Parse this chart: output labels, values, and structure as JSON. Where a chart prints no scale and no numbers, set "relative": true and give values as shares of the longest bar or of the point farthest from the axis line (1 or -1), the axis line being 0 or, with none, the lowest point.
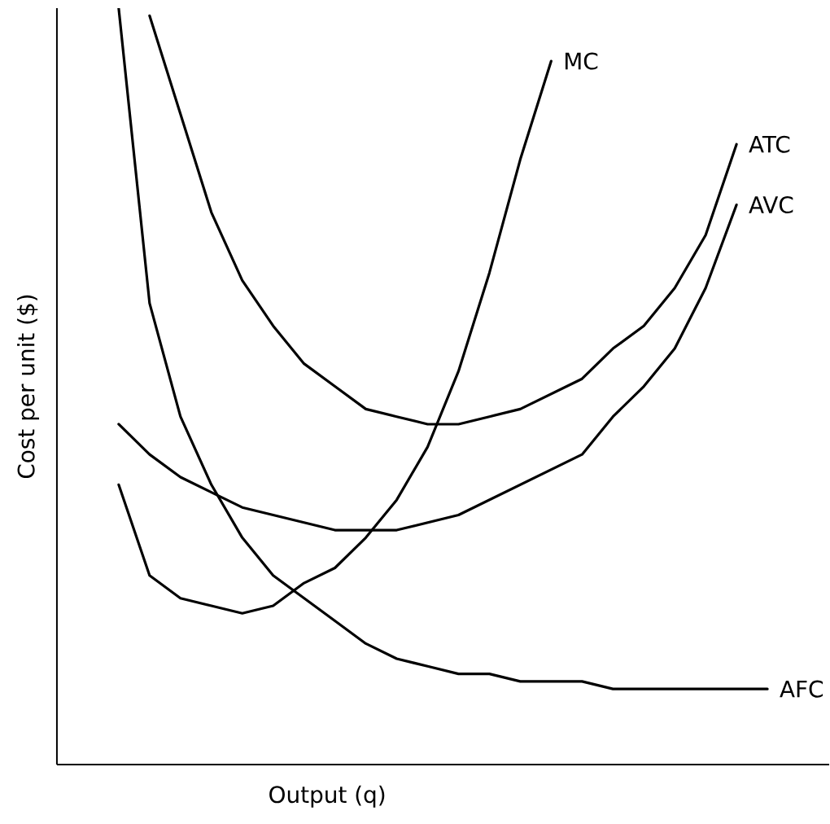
{
  "chart_data": {
    "type": "line",
    "xlabel": "Output (q)",
    "ylabel": "Cost per unit ($)",
    "relative": true,
    "marker": "none",
    "line_style": "solid",
    "categories": [
      null,
      null,
      null,
      null,
      null,
      null,
      null,
      null,
      null,
      null,
      null,
      null,
      null,
      null,
      null,
      null,
      null,
      null,
      null,
      null,
      null,
      null,
      null
    ],
    "series": [
      {
        "name": "MC",
        "color": "#000000",
        "values": [
          null,
          0.37,
          0.25,
          0.22,
          0.21,
          0.2,
          0.21,
          0.24,
          0.26,
          0.3,
          0.35,
          0.42,
          0.52,
          0.65,
          0.8,
          0.93,
          null,
          null,
          null,
          null,
          null,
          null,
          null
        ]
      },
      {
        "name": "ATC",
        "color": "#000000",
        "values": [
          null,
          null,
          0.99,
          0.86,
          0.73,
          0.64,
          0.58,
          0.53,
          0.5,
          0.47,
          0.46,
          0.45,
          0.45,
          0.46,
          0.47,
          0.49,
          0.51,
          0.55,
          0.58,
          0.63,
          0.7,
          0.82,
          null
        ]
      },
      {
        "name": "AVC",
        "color": "#000000",
        "values": [
          null,
          0.45,
          0.41,
          0.38,
          0.36,
          0.34,
          0.33,
          0.32,
          0.31,
          0.31,
          0.31,
          0.32,
          0.33,
          0.35,
          0.37,
          0.39,
          0.41,
          0.46,
          0.5,
          0.55,
          0.63,
          0.74,
          null
        ]
      },
      {
        "name": "AFC",
        "color": "#000000",
        "values": [
          null,
          1.0,
          0.61,
          0.46,
          0.37,
          0.3,
          0.25,
          0.22,
          0.19,
          0.16,
          0.14,
          0.13,
          0.12,
          0.12,
          0.11,
          0.11,
          0.11,
          0.1,
          0.1,
          0.1,
          0.1,
          0.1,
          0.1
        ]
      }
    ]
  }
}
